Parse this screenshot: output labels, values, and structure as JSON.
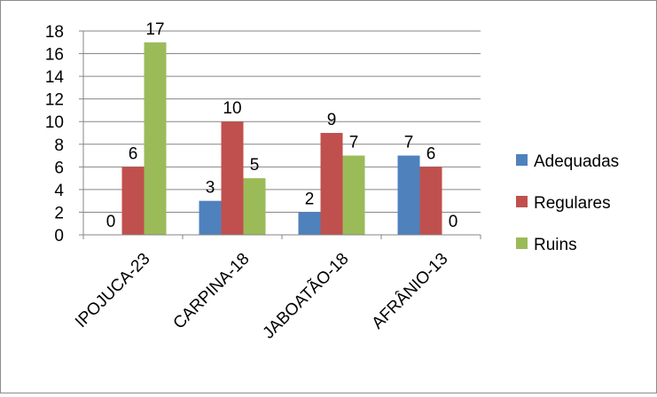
{
  "chart_data": {
    "type": "bar",
    "title": "",
    "xlabel": "",
    "ylabel": "",
    "categories": [
      "IPOJUCA-23",
      "CARPINA-18",
      "JABOATÃO-18",
      "AFRÂNIO-13"
    ],
    "series": [
      {
        "name": "Adequadas",
        "color": "#4F81BD",
        "values": [
          0,
          3,
          2,
          7
        ]
      },
      {
        "name": "Regulares",
        "color": "#C0504D",
        "values": [
          6,
          10,
          9,
          6
        ]
      },
      {
        "name": "Ruins",
        "color": "#9BBB59",
        "values": [
          17,
          5,
          7,
          0
        ]
      }
    ],
    "ylim": [
      0,
      18
    ],
    "yticks": [
      0,
      2,
      4,
      6,
      8,
      10,
      12,
      14,
      16,
      18
    ],
    "grid": true,
    "legend_position": "right",
    "data_labels": true
  }
}
